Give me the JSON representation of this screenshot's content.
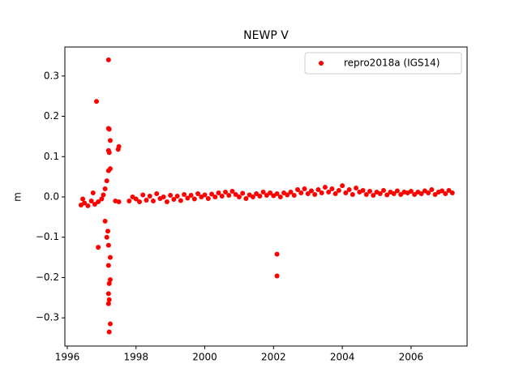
{
  "chart_data": {
    "type": "scatter",
    "title": "NEWP V",
    "y_label": "m",
    "legend": "upper right",
    "xlim": [
      1995.93,
      2007.63
    ],
    "ylim": [
      -0.37,
      0.372
    ],
    "xticks": [
      1996,
      1998,
      2000,
      2002,
      2004,
      2006
    ],
    "yticks": [
      {
        "value": -0.3,
        "label": "−0.3"
      },
      {
        "value": -0.2,
        "label": "−0.2"
      },
      {
        "value": -0.1,
        "label": "−0.1"
      },
      {
        "value": 0,
        "label": "0.0"
      },
      0.1,
      0.2,
      0.3
    ],
    "series": [
      {
        "name": "repro2018a (IGS14)",
        "color": "#ff0000",
        "x": [
          1996.4,
          1996.45,
          1996.5,
          1996.6,
          1996.7,
          1996.75,
          1996.8,
          1996.9,
          1997.0,
          1997.05,
          1997.4,
          1997.5,
          1997.8,
          1997.9,
          1998.0,
          1998.1,
          1998.2,
          1998.3,
          1998.4,
          1998.5,
          1998.6,
          1998.7,
          1998.8,
          1998.9,
          1999.0,
          1999.1,
          1999.2,
          1999.3,
          1999.4,
          1999.5,
          1999.6,
          1999.7,
          1999.8,
          1999.9,
          2000.0,
          2000.1,
          2000.2,
          2000.3,
          2000.4,
          2000.5,
          2000.6,
          2000.7,
          2000.8,
          2000.9,
          2001.0,
          2001.1,
          2001.2,
          2001.3,
          2001.4,
          2001.5,
          2001.6,
          2001.7,
          2001.8,
          2001.9,
          2002.0,
          2002.1,
          2002.2,
          2002.3,
          2002.4,
          2002.5,
          2002.6,
          2002.7,
          2002.8,
          2002.9,
          2003.0,
          2003.1,
          2003.2,
          2003.3,
          2003.4,
          2003.5,
          2003.6,
          2003.7,
          2003.8,
          2003.9,
          2004.0,
          2004.1,
          2004.2,
          2004.3,
          2004.4,
          2004.5,
          2004.6,
          2004.7,
          2004.8,
          2004.9,
          2005.0,
          2005.1,
          2005.2,
          2005.3,
          2005.4,
          2005.5,
          2005.6,
          2005.7,
          2005.8,
          2005.9,
          2006.0,
          2006.1,
          2006.2,
          2006.3,
          2006.4,
          2006.5,
          2006.6,
          2006.7,
          2006.8,
          2006.9,
          2007.0,
          2007.1,
          2007.2,
          1997.2,
          1996.85,
          1997.2,
          1997.22,
          1997.25,
          1997.5,
          1997.48,
          1997.2,
          1997.22,
          1997.25,
          1997.2,
          1997.15,
          1997.1,
          1996.9,
          1997.2,
          1997.15,
          1997.1,
          1997.2,
          1997.25,
          1997.22,
          1997.2,
          1997.22,
          1997.2,
          1997.25,
          1997.22,
          1997.25,
          1997.18,
          2002.1,
          2002.1
        ],
        "values": [
          -0.02,
          -0.005,
          -0.015,
          -0.022,
          -0.01,
          0.01,
          -0.018,
          -0.012,
          -0.005,
          0.005,
          -0.01,
          -0.012,
          -0.01,
          0.0,
          -0.005,
          -0.012,
          0.005,
          -0.008,
          0.002,
          -0.01,
          0.008,
          -0.004,
          0.0,
          -0.012,
          0.004,
          -0.006,
          0.002,
          -0.009,
          0.006,
          -0.003,
          0.004,
          -0.005,
          0.008,
          0.0,
          0.005,
          -0.004,
          0.007,
          0.0,
          0.01,
          0.002,
          0.012,
          0.004,
          0.014,
          0.006,
          0.0,
          0.009,
          -0.004,
          0.005,
          0.0,
          0.008,
          0.002,
          0.012,
          0.004,
          0.01,
          0.003,
          0.008,
          0.0,
          0.01,
          0.005,
          0.012,
          0.004,
          0.018,
          0.01,
          0.02,
          0.008,
          0.015,
          0.006,
          0.018,
          0.01,
          0.024,
          0.012,
          0.02,
          0.008,
          0.016,
          0.028,
          0.01,
          0.018,
          0.006,
          0.022,
          0.012,
          0.016,
          0.006,
          0.014,
          0.004,
          0.012,
          0.008,
          0.016,
          0.005,
          0.012,
          0.008,
          0.015,
          0.006,
          0.012,
          0.01,
          0.014,
          0.006,
          0.012,
          0.008,
          0.015,
          0.01,
          0.018,
          0.006,
          0.012,
          0.015,
          0.008,
          0.016,
          0.01,
          0.34,
          0.237,
          0.17,
          0.168,
          0.14,
          0.125,
          0.118,
          0.115,
          0.11,
          0.07,
          0.065,
          0.04,
          0.02,
          -0.125,
          -0.12,
          -0.1,
          -0.06,
          -0.17,
          -0.205,
          -0.215,
          -0.24,
          -0.255,
          -0.265,
          -0.315,
          -0.335,
          -0.15,
          -0.085,
          -0.142,
          -0.196
        ]
      }
    ]
  }
}
